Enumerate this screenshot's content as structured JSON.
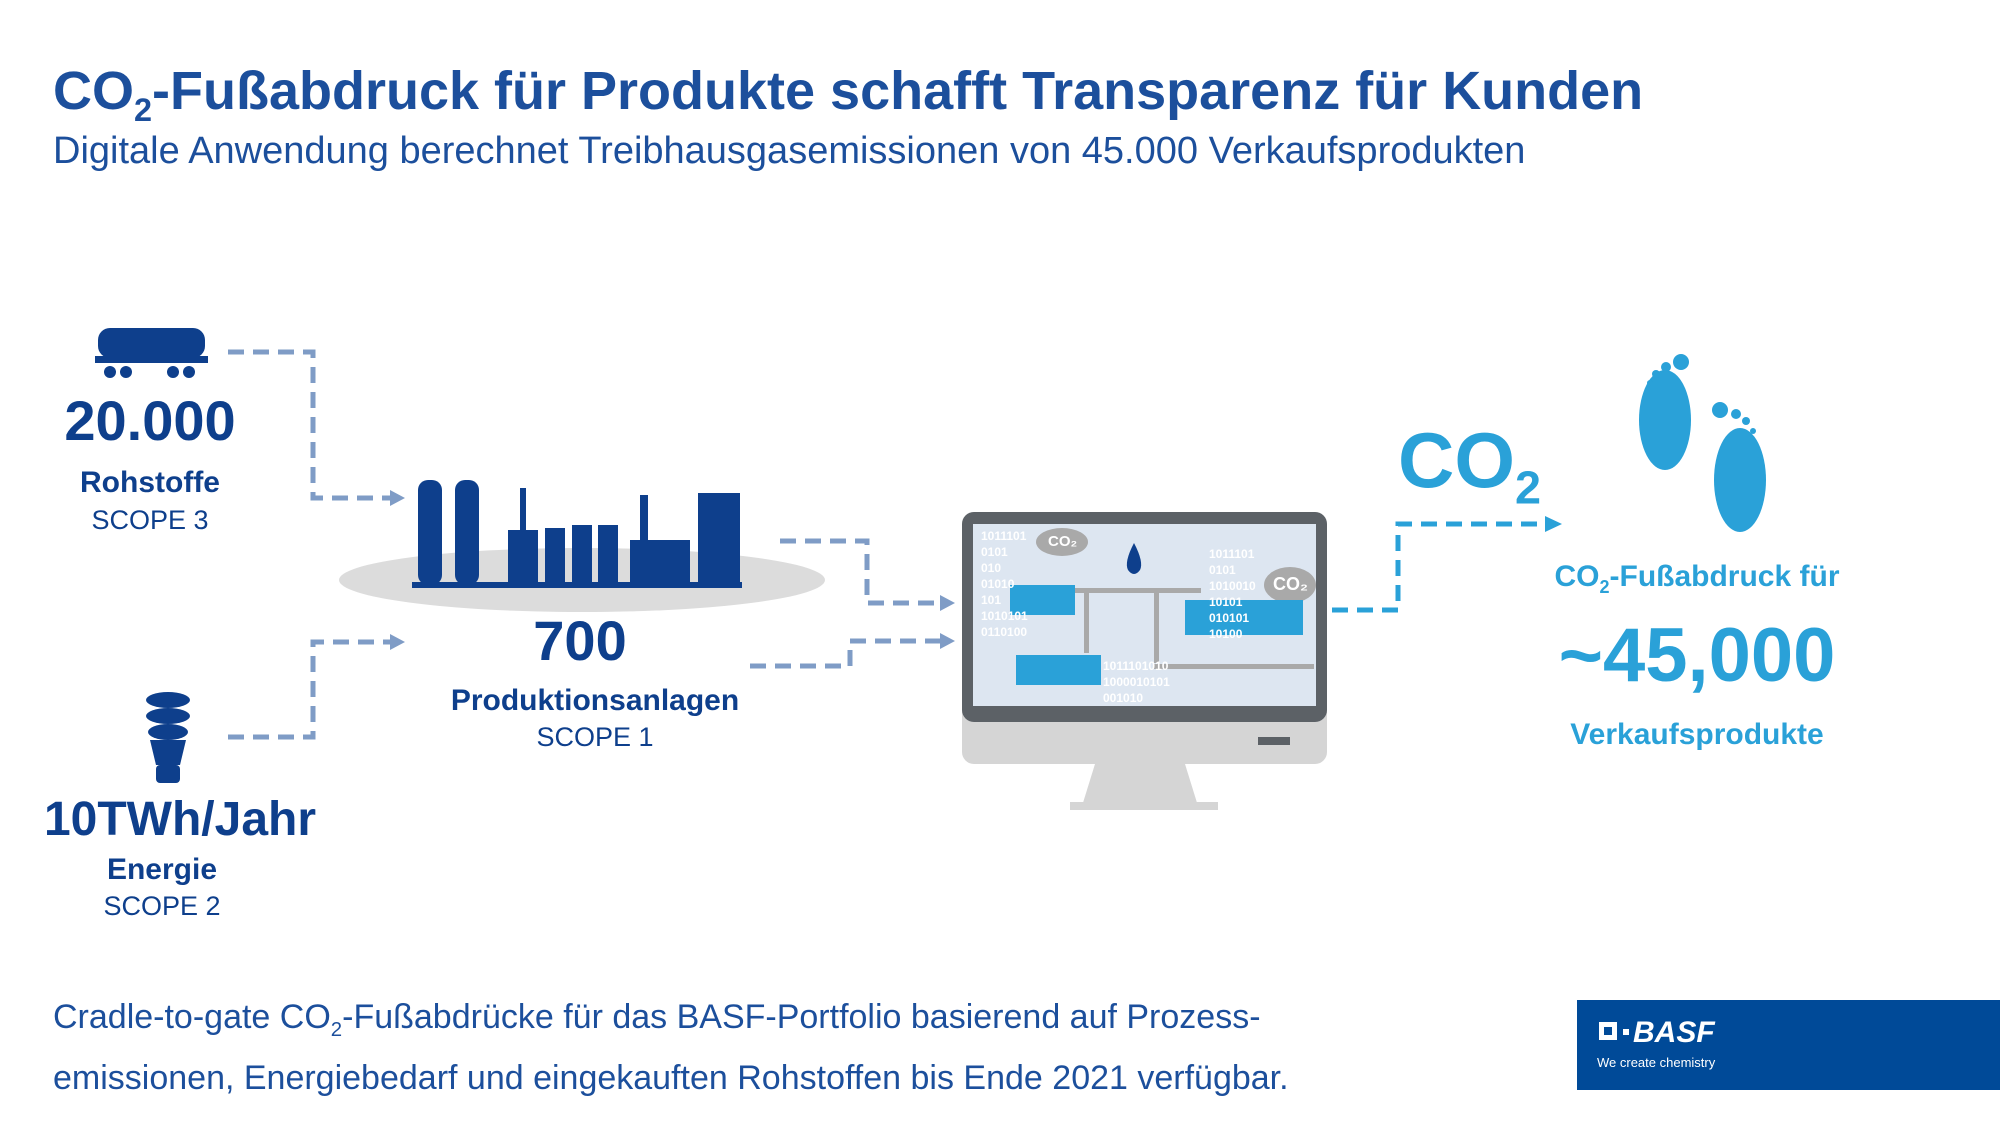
{
  "title": {
    "main": "CO",
    "sub": "2",
    "rest": "-Fußabdruck für Produkte schafft Transparenz für Kunden"
  },
  "subtitle": "Digitale Anwendung berechnet Treibhausgasemissionen von 45.000 Verkaufsprodukten",
  "inputs": [
    {
      "value": "20.000",
      "label": "Rohstoffe",
      "scope": "SCOPE 3",
      "icon": "rail-tank-car-icon"
    },
    {
      "value": "700",
      "label": "Produktionsanlagen",
      "scope": "SCOPE 1",
      "icon": "factory-icon"
    },
    {
      "value": "10TWh/Jahr",
      "label": "Energie",
      "scope": "SCOPE 2",
      "icon": "light-bulb-icon"
    }
  ],
  "monitor": {
    "icon": "computer-monitor-icon",
    "cloud_label": "CO₂",
    "binary": [
      "1011101",
      "0101",
      "010",
      "01010",
      "101",
      "1010101",
      "0110100",
      "1011101010",
      "1000010101",
      "001010",
      "1011101",
      "0101",
      "1010010",
      "10101",
      "010101",
      "10100"
    ]
  },
  "output": {
    "co2": "CO",
    "co2_sub": "2",
    "label_pre": "CO",
    "label_sub": "2",
    "label_rest": "-Fußabdruck für",
    "value": "~45,000",
    "unit": "Verkaufsprodukte",
    "icon": "footprints-icon"
  },
  "footer": {
    "line1_pre": "Cradle-to-gate CO",
    "line1_sub": "2",
    "line1_rest": "-Fußabdrücke für das BASF-Portfolio basierend auf Prozess-",
    "line2": "emissionen, Energiebedarf und eingekauften Rohstoffen bis Ende 2021 verfügbar."
  },
  "logo": {
    "name": "BASF",
    "tagline": "We create chemistry"
  },
  "colors": {
    "dark_blue": "#0e3f8c",
    "light_blue": "#2aa1d8",
    "brand": "#004a98",
    "arrow": "#7f9cc6"
  }
}
